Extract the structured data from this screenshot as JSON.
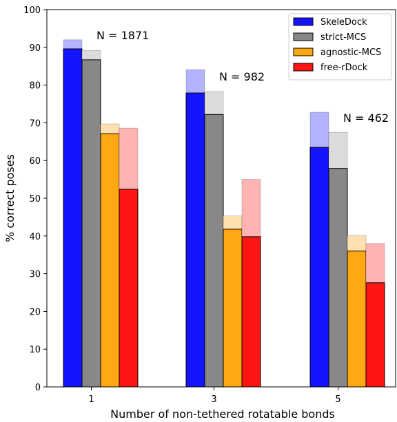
{
  "chart_data": {
    "type": "bar",
    "xlabel": "Number of non-tethered rotatable bonds",
    "ylabel": "% correct poses",
    "ylim": [
      0,
      100
    ],
    "yticks": [
      "0",
      "10",
      "20",
      "30",
      "40",
      "50",
      "60",
      "70",
      "80",
      "90",
      "100"
    ],
    "categories": [
      "1",
      "3",
      "5"
    ],
    "annotations": [
      "N = 1871",
      "N = 982",
      "N = 462"
    ],
    "legend_position": "top-right",
    "grid": false,
    "series": [
      {
        "name": "SkeleDock",
        "color": "#1414ff",
        "light_color": "#b3b3ff",
        "values": [
          89.6,
          77.9,
          63.5
        ],
        "upper_values": [
          92.0,
          84.1,
          72.8
        ]
      },
      {
        "name": "strict-MCS",
        "color": "#888888",
        "light_color": "#dcdcdc",
        "values": [
          86.7,
          72.2,
          57.9
        ],
        "upper_values": [
          89.2,
          78.3,
          67.5
        ]
      },
      {
        "name": "agnostic-MCS",
        "color": "#ffa812",
        "light_color": "#ffe0b0",
        "values": [
          67.1,
          41.8,
          36.0
        ],
        "upper_values": [
          69.7,
          45.3,
          40.1
        ]
      },
      {
        "name": "free-rDock",
        "color": "#ff1414",
        "light_color": "#ffb3b3",
        "values": [
          52.4,
          39.8,
          27.6
        ],
        "upper_values": [
          68.6,
          55.0,
          38.0
        ]
      }
    ]
  }
}
